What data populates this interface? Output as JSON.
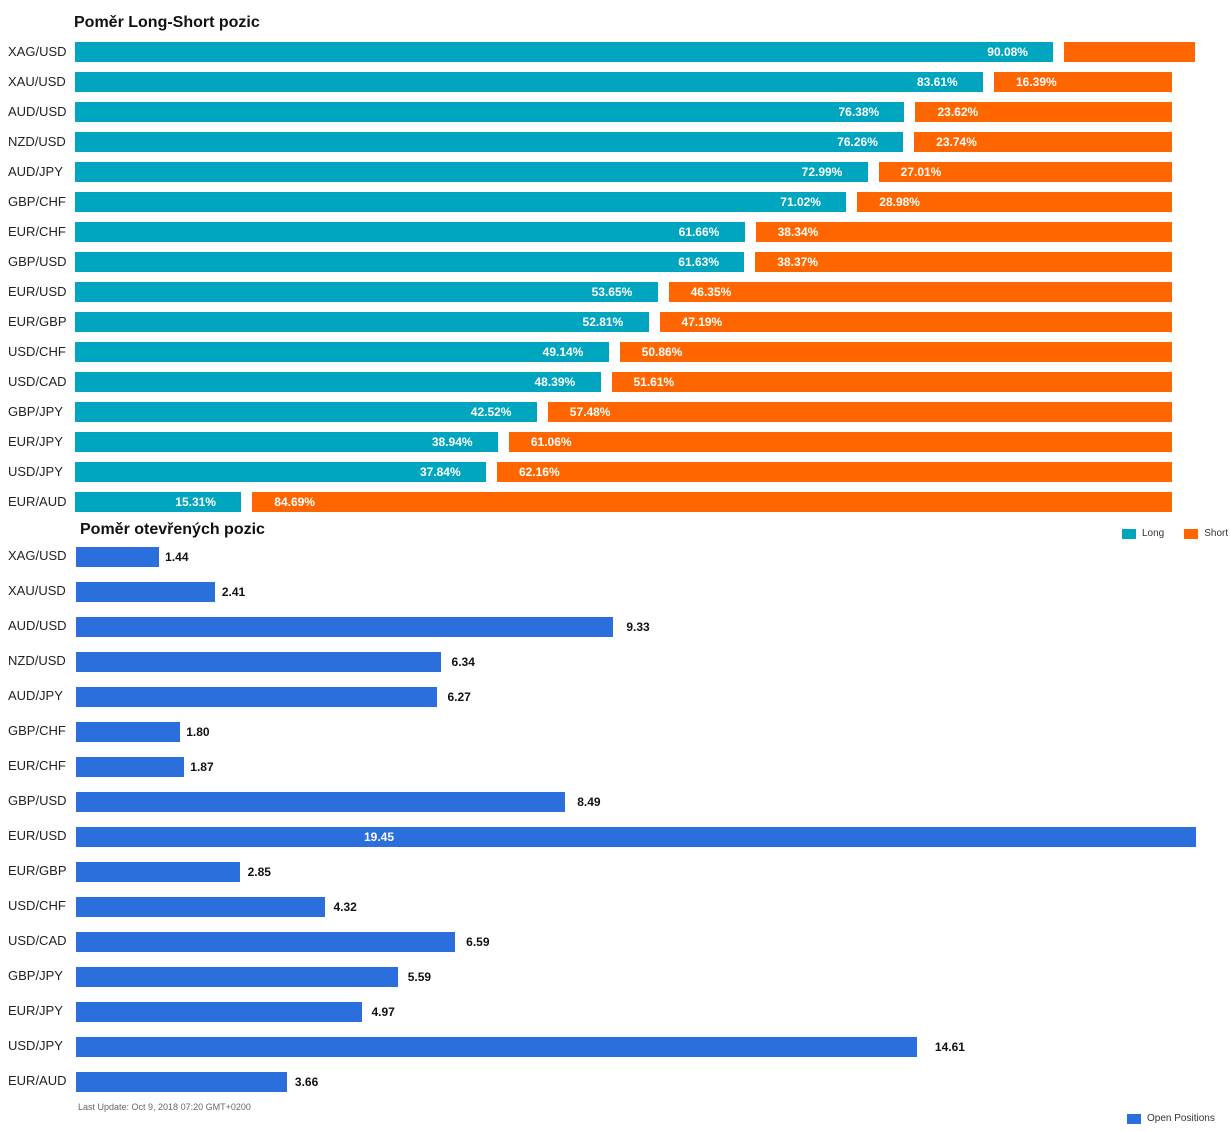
{
  "titles": {
    "long_short": "Poměr Long-Short pozic",
    "open_positions": "Poměr otevřených pozic"
  },
  "colors": {
    "long": "#00a5c0",
    "short": "#ff6600",
    "open": "#2a6fdb"
  },
  "legend": {
    "long": "Long",
    "short": "Short",
    "open": "Open Positions"
  },
  "footer": "Last Update: Oct 9, 2018 07:20 GMT+0200",
  "chart_data": [
    {
      "type": "bar",
      "orientation": "horizontal",
      "stacked": true,
      "title": "Poměr Long-Short pozic",
      "categories": [
        "XAG/USD",
        "XAU/USD",
        "AUD/USD",
        "NZD/USD",
        "AUD/JPY",
        "GBP/CHF",
        "EUR/CHF",
        "GBP/USD",
        "EUR/USD",
        "EUR/GBP",
        "USD/CHF",
        "USD/CAD",
        "GBP/JPY",
        "EUR/JPY",
        "USD/JPY",
        "EUR/AUD"
      ],
      "series": [
        {
          "name": "Long",
          "values": [
            90.08,
            83.61,
            76.38,
            76.26,
            72.99,
            71.02,
            61.66,
            61.63,
            53.65,
            52.81,
            49.14,
            48.39,
            42.52,
            38.94,
            37.84,
            15.31
          ]
        },
        {
          "name": "Short",
          "values": [
            9.92,
            16.39,
            23.62,
            23.74,
            27.01,
            28.98,
            38.34,
            38.37,
            46.35,
            47.19,
            50.86,
            51.61,
            57.48,
            61.06,
            62.16,
            84.69
          ]
        }
      ],
      "labels": {
        "long": [
          "90.08%",
          "83.61%",
          "76.38%",
          "76.26%",
          "72.99%",
          "71.02%",
          "61.66%",
          "61.63%",
          "53.65%",
          "52.81%",
          "49.14%",
          "48.39%",
          "42.52%",
          "38.94%",
          "37.84%",
          "15.31%"
        ],
        "short": [
          "",
          "16.39%",
          "23.62%",
          "23.74%",
          "27.01%",
          "28.98%",
          "38.34%",
          "38.37%",
          "46.35%",
          "47.19%",
          "50.86%",
          "51.61%",
          "57.48%",
          "61.06%",
          "62.16%",
          "84.69%"
        ]
      },
      "legend_position": "bottom-right",
      "grid": false
    },
    {
      "type": "bar",
      "orientation": "horizontal",
      "title": "Poměr otevřených pozic",
      "categories": [
        "XAG/USD",
        "XAU/USD",
        "AUD/USD",
        "NZD/USD",
        "AUD/JPY",
        "GBP/CHF",
        "EUR/CHF",
        "GBP/USD",
        "EUR/USD",
        "EUR/GBP",
        "USD/CHF",
        "USD/CAD",
        "GBP/JPY",
        "EUR/JPY",
        "USD/JPY",
        "EUR/AUD"
      ],
      "series": [
        {
          "name": "Open Positions",
          "values": [
            1.44,
            2.41,
            9.33,
            6.34,
            6.27,
            1.8,
            1.87,
            8.49,
            19.45,
            2.85,
            4.32,
            6.59,
            5.59,
            4.97,
            14.61,
            3.66
          ]
        }
      ],
      "labels": [
        "1.44",
        "2.41",
        "9.33",
        "6.34",
        "6.27",
        "1.80",
        "1.87",
        "8.49",
        "19.45",
        "2.85",
        "4.32",
        "6.59",
        "5.59",
        "4.97",
        "14.61",
        "3.66"
      ],
      "legend_position": "bottom-right",
      "grid": false
    }
  ]
}
